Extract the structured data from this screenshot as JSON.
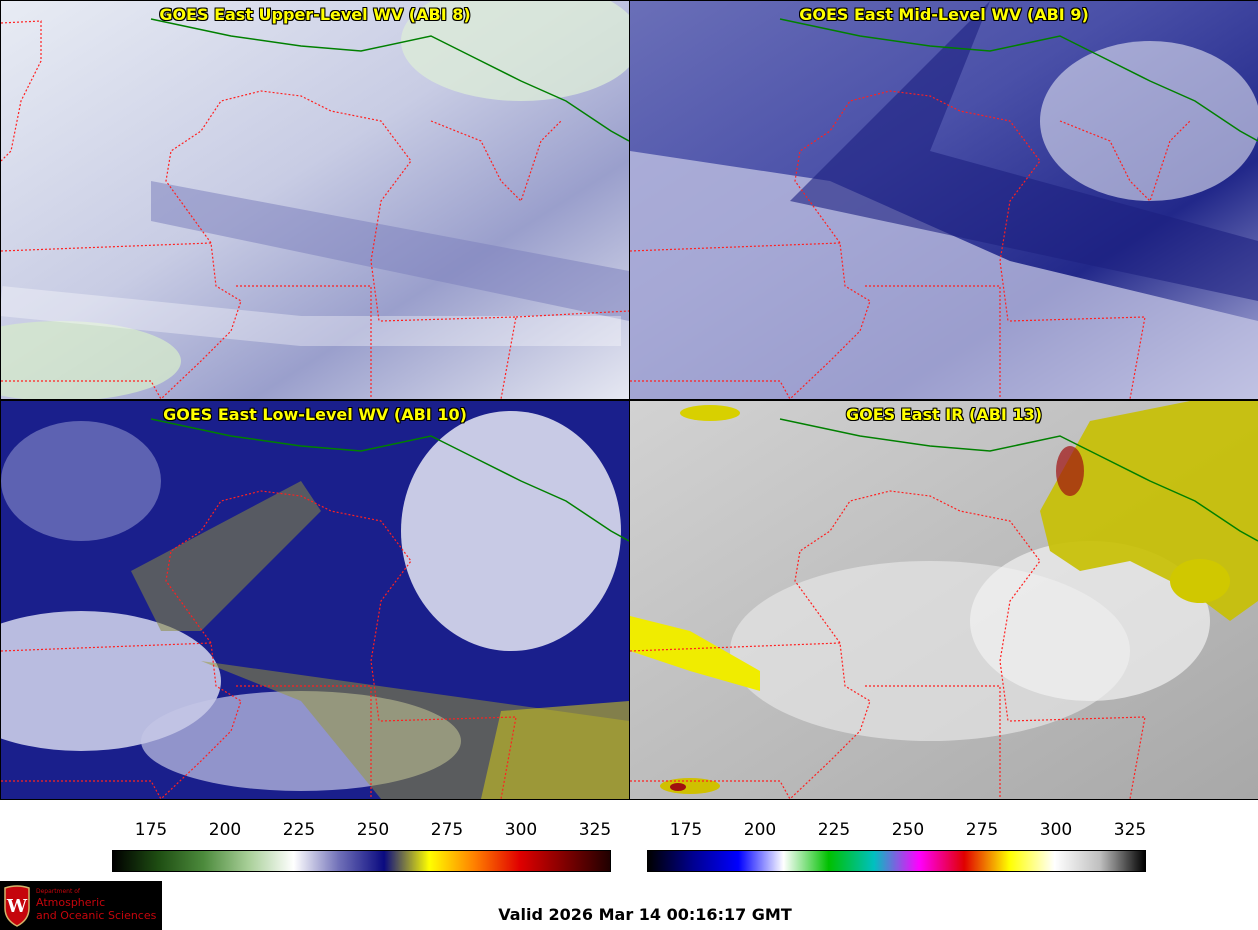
{
  "panels": [
    {
      "title": "GOES East Upper-Level WV (ABI 8)"
    },
    {
      "title": "GOES East Mid-Level WV (ABI 9)"
    },
    {
      "title": "GOES East Low-Level WV (ABI 10)"
    },
    {
      "title": "GOES East IR (ABI 13)"
    }
  ],
  "colorbar_wv": {
    "ticks": [
      "175",
      "200",
      "225",
      "250",
      "275",
      "300",
      "325"
    ],
    "stops": [
      "#000000",
      "#1e4d12",
      "#4c8a3c",
      "#a8cf98",
      "#ffffff",
      "#7070b8",
      "#0a0a80",
      "#ffff00",
      "#ff8000",
      "#e00000",
      "#800000",
      "#200000"
    ]
  },
  "colorbar_ir": {
    "ticks": [
      "175",
      "200",
      "225",
      "250",
      "275",
      "300",
      "325"
    ],
    "stops": [
      "#000000",
      "#000090",
      "#0000ff",
      "#ffffff",
      "#00c000",
      "#00c0c0",
      "#ff00ff",
      "#e00000",
      "#ffff00",
      "#ffffff",
      "#c0c0c0",
      "#000000"
    ]
  },
  "footer": {
    "valid": "Valid 2026 Mar 14 00:16:17 GMT",
    "logo_line1": "Department of",
    "logo_line2": "Atmospheric",
    "logo_line3": "and Oceanic Sciences"
  },
  "colors": {
    "state_border": "#ff2020",
    "country_border": "#008000",
    "coast": "#8b4513",
    "title": "#ffff00"
  }
}
